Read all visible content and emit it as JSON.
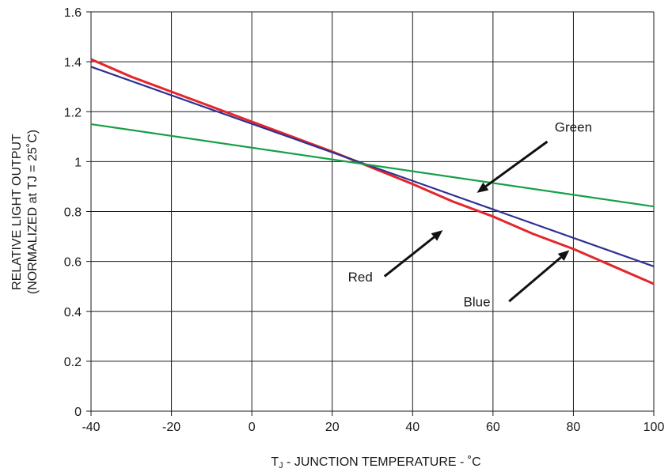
{
  "chart_data": {
    "type": "line",
    "title": "",
    "xlabel_main": "T",
    "xlabel_sub": "J",
    "xlabel_rest": " - JUNCTION TEMPERATURE - ˚C",
    "ylabel_line1": "RELATIVE LIGHT OUTPUT",
    "ylabel_line2": "(NORMALIZED at TJ = 25˚C)",
    "xlim": [
      -40,
      100
    ],
    "ylim": [
      0,
      1.6
    ],
    "xticks": [
      -40,
      -20,
      0,
      20,
      40,
      60,
      80,
      100
    ],
    "xtick_labels": [
      "-40",
      "-20",
      "0",
      "20",
      "40",
      "60",
      "80",
      "100"
    ],
    "yticks": [
      0,
      0.2,
      0.4,
      0.6,
      0.8,
      1.0,
      1.2,
      1.4,
      1.6
    ],
    "ytick_labels": [
      "0",
      "0.2",
      "0.4",
      "0.6",
      "0.8",
      "1",
      "1.2",
      "1.4",
      "1.6"
    ],
    "grid": true,
    "legend": "none",
    "series": [
      {
        "color": "#e3262b",
        "x": [
          -40,
          -30,
          -20,
          -10,
          0,
          10,
          20,
          30,
          40,
          50,
          60,
          70,
          80,
          90,
          100
        ],
        "y": [
          1.41,
          1.34,
          1.28,
          1.22,
          1.16,
          1.1,
          1.04,
          0.975,
          0.91,
          0.84,
          0.78,
          0.71,
          0.65,
          0.58,
          0.51
        ]
      },
      {
        "color": "#2e3192",
        "x": [
          -40,
          100
        ],
        "y": [
          1.38,
          0.58
        ]
      },
      {
        "color": "#16a047",
        "x": [
          -40,
          100
        ],
        "y": [
          1.15,
          0.82
        ]
      }
    ],
    "annotations": [
      {
        "text": "Green",
        "text_x": 80,
        "text_y": 1.12,
        "arrow_from": [
          73.5,
          1.08
        ],
        "arrow_to": [
          56,
          0.875
        ]
      },
      {
        "text": "Red",
        "text_x": 27,
        "text_y": 0.52,
        "arrow_from": [
          33,
          0.54
        ],
        "arrow_to": [
          47.5,
          0.725
        ]
      },
      {
        "text": "Blue",
        "text_x": 56,
        "text_y": 0.42,
        "arrow_from": [
          64,
          0.44
        ],
        "arrow_to": [
          79,
          0.645
        ]
      }
    ]
  }
}
